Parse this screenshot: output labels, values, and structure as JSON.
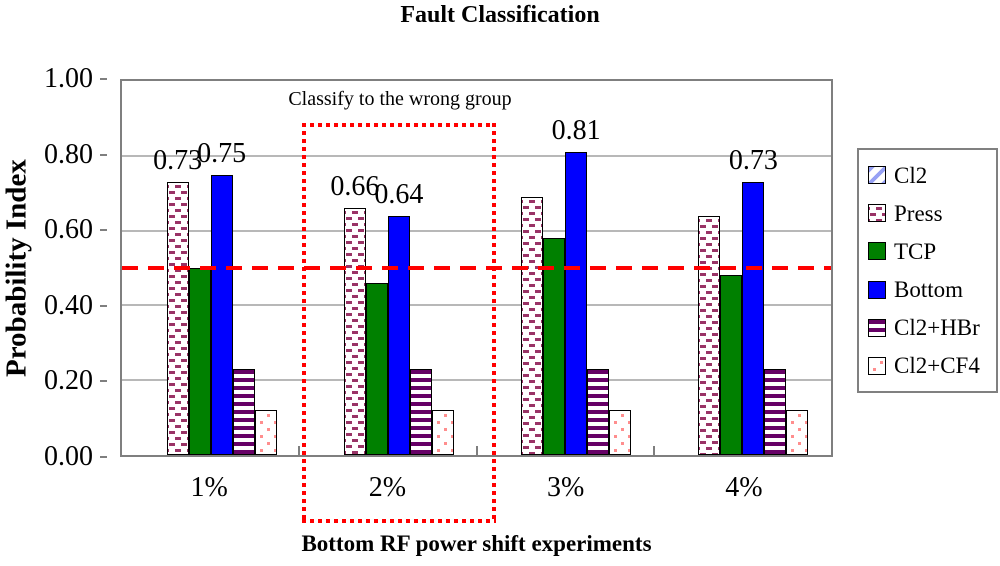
{
  "chart_data": {
    "type": "bar",
    "title": "Fault Classification",
    "xlabel": "Bottom RF power shift experiments",
    "ylabel": "Probability Index",
    "ylim": [
      0.0,
      1.0
    ],
    "grid": true,
    "legend_position": "right",
    "yticks": [
      {
        "value": 1.0,
        "label": "1.00"
      },
      {
        "value": 0.8,
        "label": "0.80"
      },
      {
        "value": 0.6,
        "label": "0.60"
      },
      {
        "value": 0.4,
        "label": "0.40"
      },
      {
        "value": 0.2,
        "label": "0.20"
      },
      {
        "value": 0.0,
        "label": "0.00"
      }
    ],
    "categories": [
      "1%",
      "2%",
      "3%",
      "4%"
    ],
    "series": [
      {
        "name": "Cl2",
        "key": "cl2",
        "color": "#97A1F4",
        "values": [
          0,
          0,
          0,
          0
        ],
        "labels": [
          null,
          null,
          null,
          null
        ]
      },
      {
        "name": "Press",
        "key": "press",
        "color": "#993366",
        "values": [
          0.73,
          0.66,
          0.69,
          0.64
        ],
        "labels": [
          "0.73",
          "0.66",
          null,
          null
        ]
      },
      {
        "name": "TCP",
        "key": "tcp",
        "color": "#008000",
        "values": [
          0.5,
          0.46,
          0.58,
          0.48
        ],
        "labels": [
          null,
          null,
          null,
          null
        ]
      },
      {
        "name": "Bottom",
        "key": "bottom",
        "color": "#0000FF",
        "values": [
          0.75,
          0.64,
          0.81,
          0.73
        ],
        "labels": [
          "0.75",
          "0.64",
          "0.81",
          "0.73"
        ]
      },
      {
        "name": "Cl2+HBr",
        "key": "hbr",
        "color": "#660066",
        "values": [
          0.23,
          0.23,
          0.23,
          0.23
        ],
        "labels": [
          null,
          null,
          null,
          null
        ]
      },
      {
        "name": "Cl2+CF4",
        "key": "cf4",
        "color": "#FF8E8E",
        "values": [
          0.12,
          0.12,
          0.12,
          0.12
        ],
        "labels": [
          null,
          null,
          null,
          null
        ]
      }
    ],
    "reference_line": {
      "value": 0.5,
      "color": "#FF0000",
      "style": "dashed"
    },
    "highlight_box": {
      "category": "2%",
      "label": "Classify to the wrong group",
      "color": "#FF0000",
      "style": "dotted"
    }
  }
}
